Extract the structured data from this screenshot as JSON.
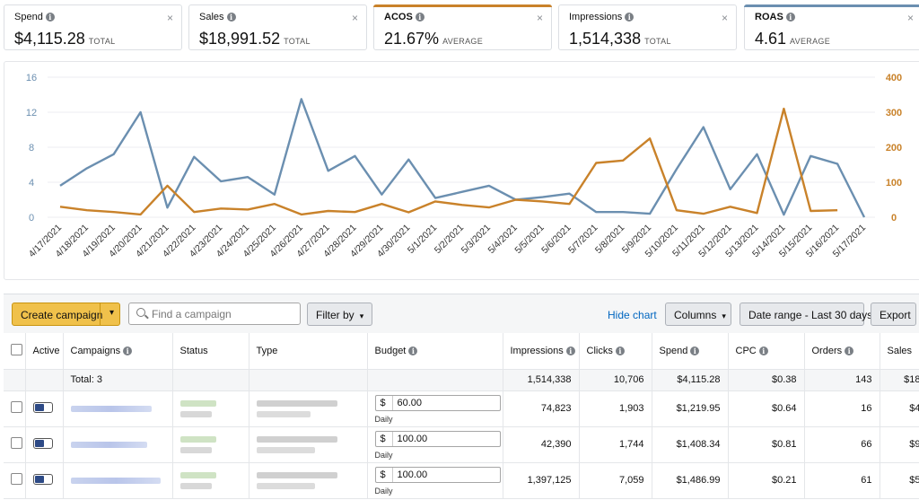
{
  "metrics": [
    {
      "label": "Spend",
      "value": "$4,115.28",
      "suffix": "TOTAL",
      "accent": "",
      "bold": false
    },
    {
      "label": "Sales",
      "value": "$18,991.52",
      "suffix": "TOTAL",
      "accent": "",
      "bold": false
    },
    {
      "label": "ACOS",
      "value": "21.67%",
      "suffix": "AVERAGE",
      "accent": "#c9822a",
      "bold": true
    },
    {
      "label": "Impressions",
      "value": "1,514,338",
      "suffix": "TOTAL",
      "accent": "",
      "bold": false
    },
    {
      "label": "ROAS",
      "value": "4.61",
      "suffix": "AVERAGE",
      "accent": "#6b8fb0",
      "bold": true
    }
  ],
  "icons": {
    "info": "info-icon",
    "close": "close-icon",
    "dropdown": "chevron-down-icon",
    "search": "search-icon"
  },
  "close_glyph": "×",
  "info_glyph": "i",
  "chevron_glyph": "▾",
  "chart_data": {
    "type": "line",
    "x": [
      "4/17/2021",
      "4/18/2021",
      "4/19/2021",
      "4/20/2021",
      "4/21/2021",
      "4/22/2021",
      "4/23/2021",
      "4/24/2021",
      "4/25/2021",
      "4/26/2021",
      "4/27/2021",
      "4/28/2021",
      "4/29/2021",
      "4/30/2021",
      "5/1/2021",
      "5/2/2021",
      "5/3/2021",
      "5/4/2021",
      "5/5/2021",
      "5/6/2021",
      "5/7/2021",
      "5/8/2021",
      "5/9/2021",
      "5/10/2021",
      "5/11/2021",
      "5/12/2021",
      "5/13/2021",
      "5/14/2021",
      "5/15/2021",
      "5/16/2021",
      "5/17/2021"
    ],
    "series": [
      {
        "axis": "left",
        "color": "#6b8fb0",
        "values": [
          3.6,
          5.6,
          7.2,
          12.0,
          1.1,
          6.9,
          4.1,
          4.6,
          2.6,
          13.5,
          5.3,
          7.0,
          2.6,
          6.6,
          2.2,
          2.9,
          3.6,
          2.0,
          2.3,
          2.7,
          0.6,
          0.6,
          0.4,
          5.5,
          10.3,
          3.2,
          7.2,
          0.3,
          7.0,
          6.1,
          0.0
        ]
      },
      {
        "axis": "right",
        "color": "#c9822a",
        "values": [
          30,
          20,
          15,
          8,
          90,
          15,
          25,
          22,
          38,
          8,
          18,
          15,
          38,
          14,
          45,
          35,
          28,
          50,
          45,
          38,
          155,
          162,
          225,
          20,
          10,
          30,
          12,
          310,
          18,
          20,
          null
        ]
      }
    ],
    "y_left": {
      "ticks": [
        0,
        4,
        8,
        12,
        16
      ],
      "range": [
        0,
        16
      ],
      "color": "#6b8fb0"
    },
    "y_right": {
      "ticks": [
        0,
        100,
        200,
        300,
        400
      ],
      "range": [
        0,
        400
      ],
      "color": "#c9822a"
    },
    "grid": true
  },
  "toolbar": {
    "create_campaign": "Create campaign",
    "search_placeholder": "Find a campaign",
    "filter_by": "Filter by",
    "hide_chart": "Hide chart",
    "columns": "Columns",
    "date_range": "Date range - Last 30 days",
    "export": "Export"
  },
  "table": {
    "headers": {
      "active": "Active",
      "campaigns": "Campaigns",
      "status": "Status",
      "type": "Type",
      "budget": "Budget",
      "impressions": "Impressions",
      "clicks": "Clicks",
      "spend": "Spend",
      "cpc": "CPC",
      "orders": "Orders",
      "sales": "Sales"
    },
    "total": {
      "label": "Total: 3",
      "impressions": "1,514,338",
      "clicks": "10,706",
      "spend": "$4,115.28",
      "cpc": "$0.38",
      "orders": "143",
      "sales": "$18"
    },
    "currency": "$",
    "budget_type": "Daily",
    "rows": [
      {
        "budget": "60.00",
        "impressions": "74,823",
        "clicks": "1,903",
        "spend": "$1,219.95",
        "cpc": "$0.64",
        "orders": "16",
        "sales": "$4"
      },
      {
        "budget": "100.00",
        "impressions": "42,390",
        "clicks": "1,744",
        "spend": "$1,408.34",
        "cpc": "$0.81",
        "orders": "66",
        "sales": "$9"
      },
      {
        "budget": "100.00",
        "impressions": "1,397,125",
        "clicks": "7,059",
        "spend": "$1,486.99",
        "cpc": "$0.21",
        "orders": "61",
        "sales": "$5"
      }
    ]
  }
}
